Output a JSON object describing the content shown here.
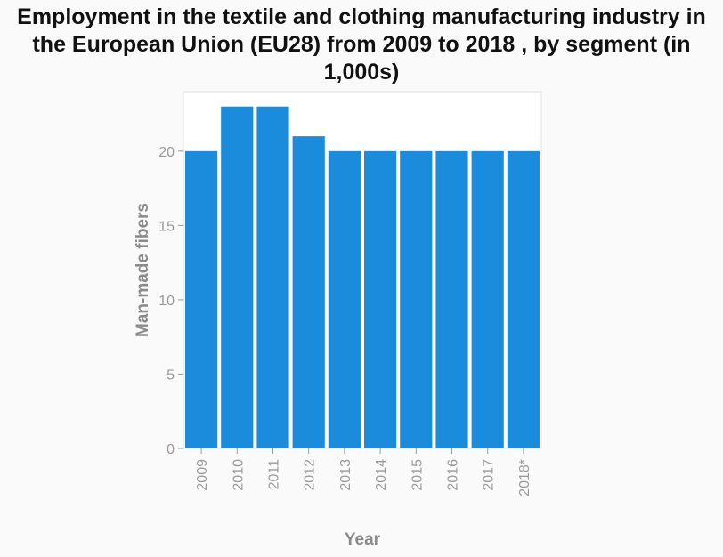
{
  "chart_data": {
    "type": "bar",
    "title": "Employment in the textile and clothing manufacturing industry in the European Union (EU28) from 2009 to 2018 , by segment (in 1,000s)",
    "xlabel": "Year",
    "ylabel": "Man-made fibers",
    "categories": [
      "2009",
      "2010",
      "2011",
      "2012",
      "2013",
      "2014",
      "2015",
      "2016",
      "2017",
      "2018*"
    ],
    "values": [
      20,
      23,
      23,
      21,
      20,
      20,
      20,
      20,
      20,
      20
    ],
    "ylim": [
      0,
      24
    ],
    "yticks": [
      0,
      5,
      10,
      15,
      20
    ],
    "grid": false,
    "bar_color": "#1a8cdb",
    "plot_background": "#ffffff"
  }
}
